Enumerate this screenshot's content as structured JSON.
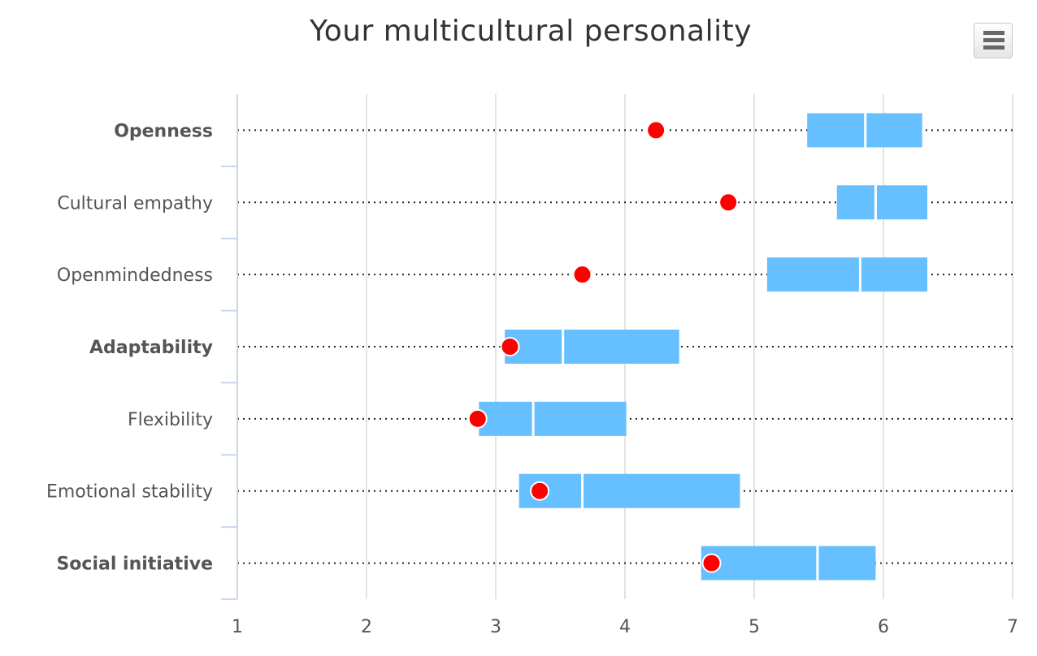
{
  "chart_data": {
    "type": "boxplot",
    "title": "Your multicultural personality",
    "categories": [
      "Openness",
      "Cultural empathy",
      "Openmindedness",
      "Adaptability",
      "Flexibility",
      "Emotional stability",
      "Social initiative"
    ],
    "bold_categories": [
      "Openness",
      "Adaptability",
      "Social initiative"
    ],
    "xlim": [
      1,
      7
    ],
    "xticks": [
      1,
      2,
      3,
      4,
      5,
      6,
      7
    ],
    "ranges": [
      {
        "low": 1.0,
        "q1": 5.41,
        "median": 5.86,
        "q3": 6.3,
        "high": 7.0
      },
      {
        "low": 1.0,
        "q1": 5.64,
        "median": 5.94,
        "q3": 6.34,
        "high": 7.0
      },
      {
        "low": 1.0,
        "q1": 5.1,
        "median": 5.82,
        "q3": 6.34,
        "high": 7.0
      },
      {
        "low": 1.0,
        "q1": 3.07,
        "median": 3.52,
        "q3": 4.42,
        "high": 7.0
      },
      {
        "low": 1.0,
        "q1": 2.87,
        "median": 3.29,
        "q3": 4.01,
        "high": 7.0
      },
      {
        "low": 1.0,
        "q1": 3.18,
        "median": 3.67,
        "q3": 4.89,
        "high": 7.0
      },
      {
        "low": 1.0,
        "q1": 4.59,
        "median": 5.49,
        "q3": 5.94,
        "high": 7.0
      }
    ],
    "scores": [
      4.24,
      4.8,
      3.67,
      3.11,
      2.86,
      3.34,
      4.67
    ],
    "box_color": "#66bfff",
    "score_color": "#ff0000",
    "grid": true
  },
  "menu": {
    "icon": "hamburger-menu-icon"
  }
}
